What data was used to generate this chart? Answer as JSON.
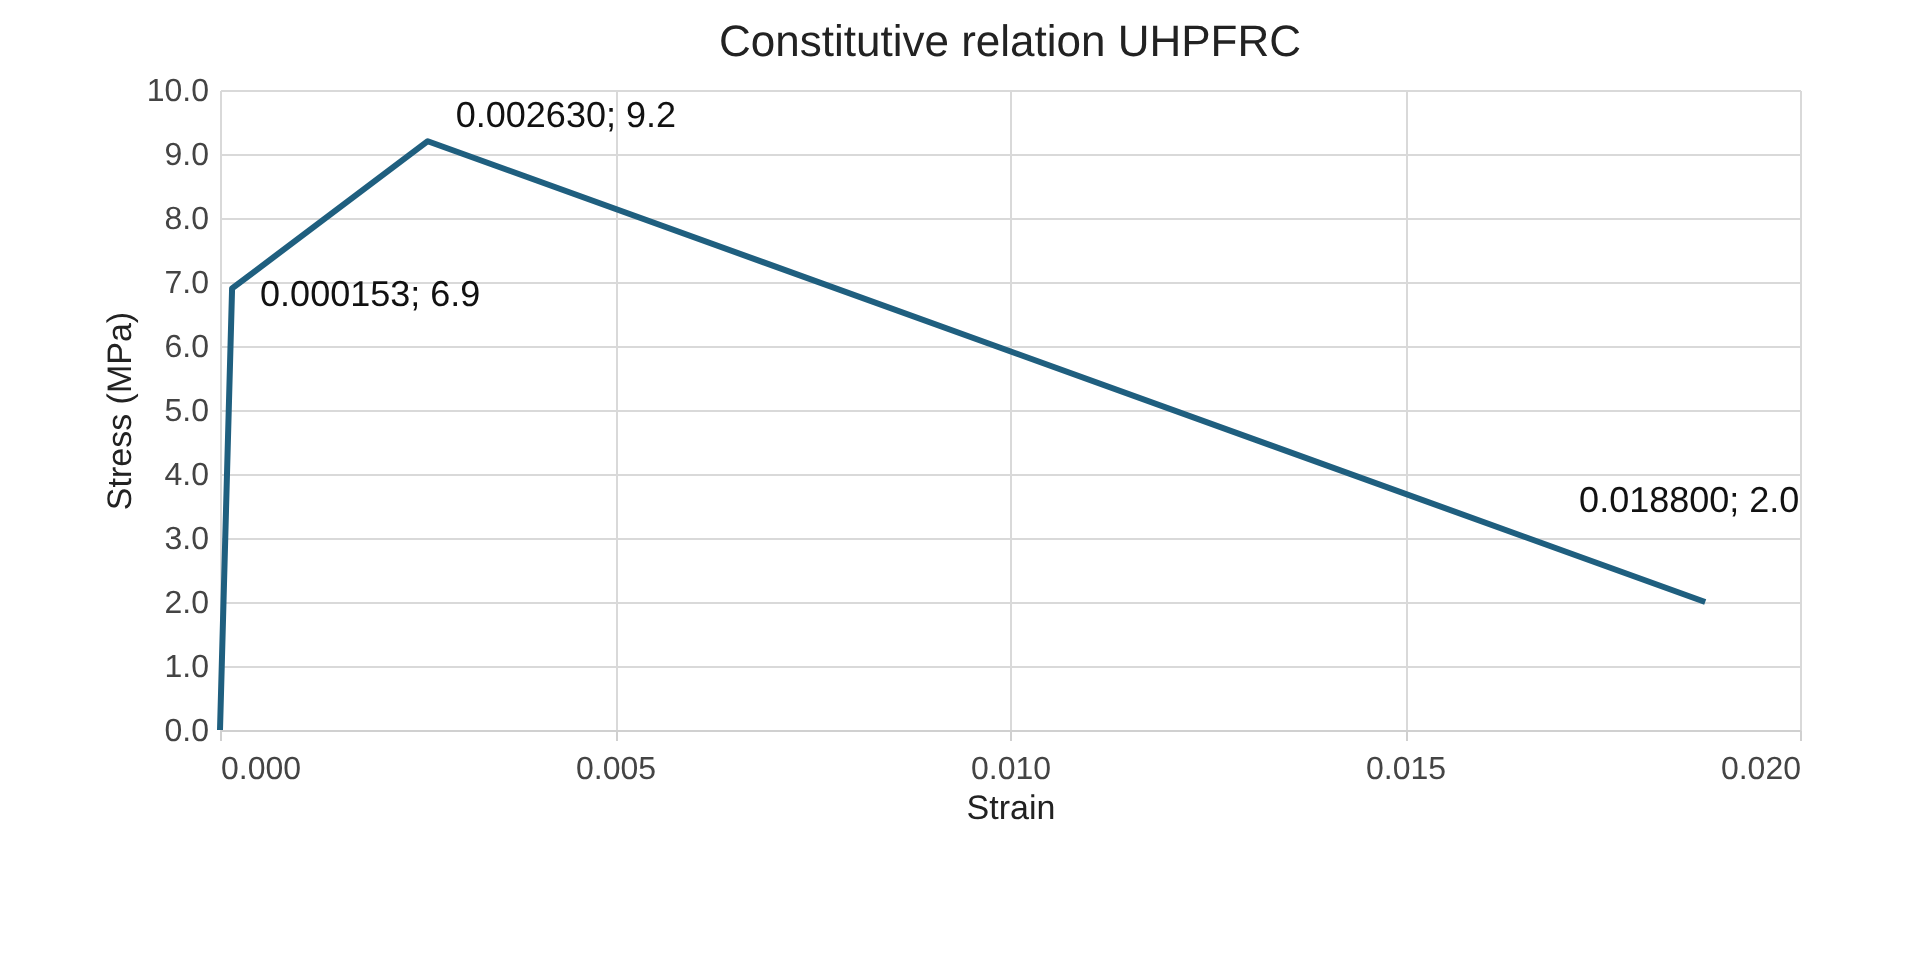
{
  "chart_data": {
    "type": "line",
    "title": "Constitutive relation UHPFRC",
    "xlabel": "Strain",
    "ylabel": "Stress (MPa)",
    "x": [
      0,
      0.000153,
      0.00263,
      0.0188
    ],
    "series": [
      {
        "color": "#1f5f7f",
        "values": [
          0,
          6.9,
          9.2,
          2.0
        ]
      }
    ],
    "xlim": [
      0,
      0.02
    ],
    "ylim": [
      0,
      10
    ],
    "xticks": [
      {
        "value": 0,
        "label": "0.000"
      },
      {
        "value": 0.005,
        "label": "0.005"
      },
      {
        "value": 0.01,
        "label": "0.010"
      },
      {
        "value": 0.015,
        "label": "0.015"
      },
      {
        "value": 0.02,
        "label": "0.020"
      }
    ],
    "yticks": [
      {
        "value": 0,
        "label": "0.0"
      },
      {
        "value": 1,
        "label": "1.0"
      },
      {
        "value": 2,
        "label": "2.0"
      },
      {
        "value": 3,
        "label": "3.0"
      },
      {
        "value": 4,
        "label": "4.0"
      },
      {
        "value": 5,
        "label": "5.0"
      },
      {
        "value": 6,
        "label": "6.0"
      },
      {
        "value": 7,
        "label": "7.0"
      },
      {
        "value": 8,
        "label": "8.0"
      },
      {
        "value": 9,
        "label": "9.0"
      },
      {
        "value": 10,
        "label": "10.0"
      }
    ],
    "annotations": [
      {
        "text": "0.000153; 6.9",
        "x": 0.000153,
        "y": 6.9
      },
      {
        "text": "0.002630; 9.2",
        "x": 0.00263,
        "y": 9.2
      },
      {
        "text": "0.018800; 2.0",
        "x": 0.0188,
        "y": 2.0
      }
    ],
    "grid": true,
    "marker": "none",
    "line_style": "solid"
  }
}
